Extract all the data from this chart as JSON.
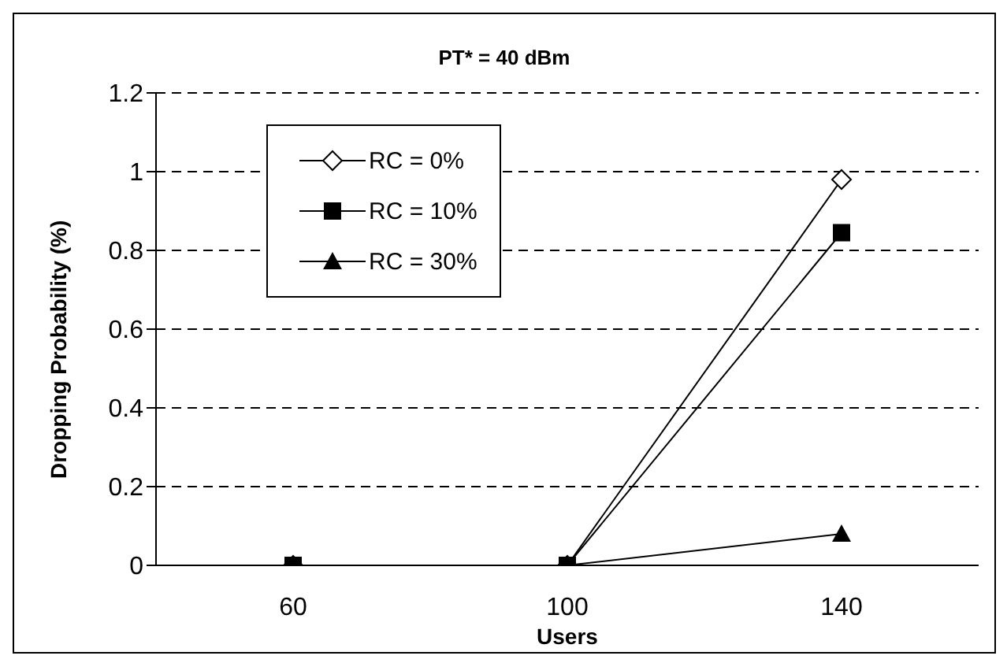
{
  "chart_data": {
    "type": "line",
    "title": "PT* = 40 dBm",
    "xlabel": "Users",
    "ylabel": "Dropping Probability (%)",
    "categories": [
      "60",
      "100",
      "140"
    ],
    "series": [
      {
        "name": "RC = 0%",
        "color": "#000000",
        "marker": "diamond",
        "values": [
          0,
          0,
          0.98
        ]
      },
      {
        "name": "RC = 10%",
        "color": "#000000",
        "marker": "square",
        "values": [
          0,
          0,
          0.845
        ]
      },
      {
        "name": "RC = 30%",
        "color": "#000000",
        "marker": "triangle",
        "values": [
          0,
          0,
          0.08
        ]
      }
    ],
    "ylim": [
      0,
      1.2
    ],
    "yticks": [
      0,
      0.2,
      0.4,
      0.6,
      0.8,
      1,
      1.2
    ],
    "grid": "y",
    "line_style": "solid",
    "legend": "top left"
  }
}
